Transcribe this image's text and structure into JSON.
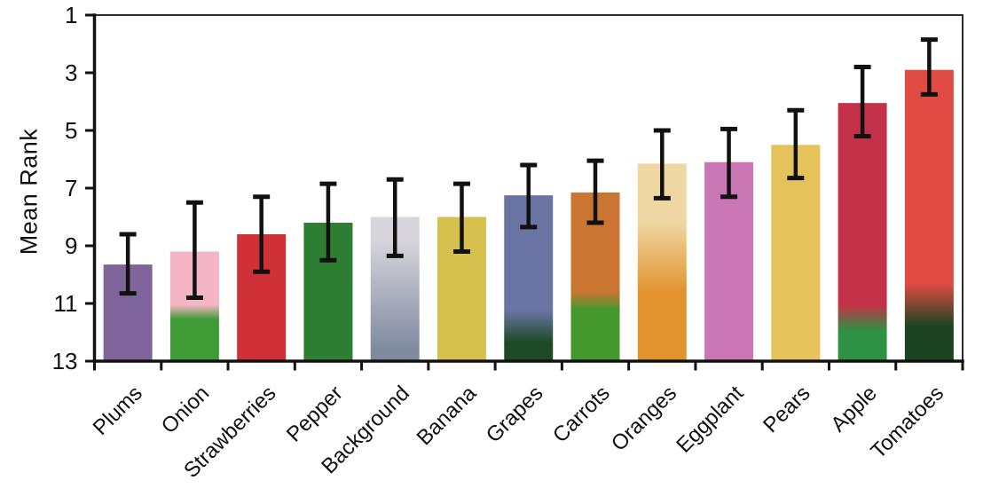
{
  "chart_data": {
    "type": "bar",
    "title": "",
    "xlabel": "",
    "ylabel": "Mean Rank",
    "grid": false,
    "legend": "none",
    "y_axis": {
      "min": 1,
      "max": 13,
      "inverted": true,
      "ticks": [
        1,
        3,
        5,
        7,
        9,
        11,
        13
      ]
    },
    "categories": [
      "Plums",
      "Onion",
      "Strawberries",
      "Pepper",
      "Background",
      "Banana",
      "Grapes",
      "Carrots",
      "Oranges",
      "Eggplant",
      "Pears",
      "Apple",
      "Tomatoes"
    ],
    "series": [
      {
        "name": "Mean Rank",
        "values": [
          9.65,
          9.2,
          8.6,
          8.2,
          8.0,
          8.0,
          7.25,
          7.15,
          6.15,
          6.1,
          5.5,
          4.05,
          2.9
        ]
      }
    ],
    "error_bars": [
      [
        8.6,
        10.65
      ],
      [
        7.5,
        10.8
      ],
      [
        7.3,
        9.9
      ],
      [
        6.85,
        9.5
      ],
      [
        6.7,
        9.35
      ],
      [
        6.85,
        9.2
      ],
      [
        6.2,
        8.35
      ],
      [
        6.05,
        8.2
      ],
      [
        5.0,
        7.35
      ],
      [
        4.95,
        7.3
      ],
      [
        4.3,
        6.65
      ],
      [
        2.8,
        5.2
      ],
      [
        1.85,
        3.75
      ]
    ],
    "bar_styles": [
      {
        "category": "Plums",
        "color": "#80649c"
      },
      {
        "category": "Onion",
        "color": "#f4b6c4",
        "bottom_color": "#3f9b35",
        "transition_rank": 11.3,
        "blend": 0.25
      },
      {
        "category": "Strawberries",
        "color": "#cf3136"
      },
      {
        "category": "Pepper",
        "color": "#2d7d33"
      },
      {
        "category": "Background",
        "color": "#d7d5db",
        "bottom_color": "#7f8aa0",
        "transition_rank": 10.7,
        "blend": 1.9
      },
      {
        "category": "Banana",
        "color": "#d6c04e"
      },
      {
        "category": "Grapes",
        "color": "#6a74a2",
        "bottom_color": "#1d4a24",
        "transition_rank": 11.8,
        "blend": 0.55
      },
      {
        "category": "Carrots",
        "color": "#cb7533",
        "bottom_color": "#45982d",
        "transition_rank": 10.9,
        "blend": 0.3
      },
      {
        "category": "Oranges",
        "color": "#eed7a2",
        "bottom_color": "#e2932e",
        "transition_rank": 9.4,
        "blend": 1.2
      },
      {
        "category": "Eggplant",
        "color": "#cb76b4"
      },
      {
        "category": "Pears",
        "color": "#e6c35a"
      },
      {
        "category": "Apple",
        "color": "#c43249",
        "bottom_color": "#2e9144",
        "transition_rank": 11.5,
        "blend": 0.45
      },
      {
        "category": "Tomatoes",
        "color": "#e04b44",
        "bottom_color": "#1c4322",
        "transition_rank": 11.05,
        "blend": 0.75
      }
    ],
    "error_bar_color": "#111111",
    "axis_color": "#111111",
    "frame_color": "#2b2b2b"
  }
}
